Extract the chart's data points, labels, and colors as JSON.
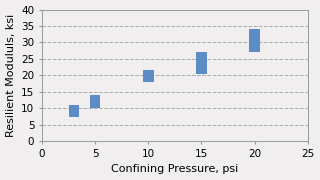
{
  "title": "",
  "xlabel": "Confining Pressure, psi",
  "ylabel": "Resilient Modululs, ksi",
  "xlim": [
    0,
    25
  ],
  "ylim": [
    0,
    40
  ],
  "xticks": [
    0,
    5,
    10,
    15,
    20,
    25
  ],
  "yticks": [
    0,
    5,
    10,
    15,
    20,
    25,
    30,
    35,
    40
  ],
  "confining_pressures": [
    3,
    5,
    10,
    15,
    20
  ],
  "data_ranges": [
    [
      7.5,
      11.0
    ],
    [
      10.0,
      14.0
    ],
    [
      18.0,
      21.5
    ],
    [
      20.5,
      27.0
    ],
    [
      27.0,
      34.0
    ]
  ],
  "box_color": "#5B8DC4",
  "box_width": 1.0,
  "background_color": "#f0eeee",
  "plot_bg_color": "#f0eeee",
  "grid_color": "#aaaaaa",
  "grid_style": "--",
  "xlabel_fontsize": 8,
  "ylabel_fontsize": 8,
  "tick_fontsize": 7.5
}
